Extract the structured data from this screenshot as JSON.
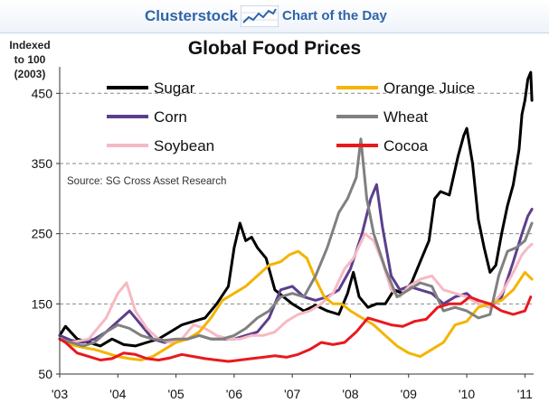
{
  "header": {
    "brand": "Clusterstock",
    "subtitle": "Chart of the Day",
    "logo_icon": "line-chart-icon"
  },
  "chart_data": {
    "type": "line",
    "title": "Global Food Prices",
    "ylabel": "Indexed to 100 (2003)",
    "ylabel_lines": [
      "Indexed",
      "to 100",
      "(2003)"
    ],
    "source": "Source: SG Cross Asset Research",
    "xlim": [
      2003.0,
      2011.15
    ],
    "ylim": [
      50,
      480
    ],
    "x_ticks": [
      {
        "x": 2003,
        "label": "'03"
      },
      {
        "x": 2004,
        "label": "'04"
      },
      {
        "x": 2005,
        "label": "'05"
      },
      {
        "x": 2006,
        "label": "'06"
      },
      {
        "x": 2007,
        "label": "'07"
      },
      {
        "x": 2008,
        "label": "'08"
      },
      {
        "x": 2009,
        "label": "'09"
      },
      {
        "x": 2010,
        "label": "'10"
      },
      {
        "x": 2011,
        "label": "'11"
      }
    ],
    "y_ticks": [
      50,
      150,
      250,
      350,
      450
    ],
    "dashed_gridlines": [
      150,
      250,
      350,
      450
    ],
    "legend_placement": "top, two columns",
    "series": [
      {
        "name": "Sugar",
        "color": "#000000",
        "points": [
          [
            2003.0,
            105
          ],
          [
            2003.1,
            118
          ],
          [
            2003.3,
            100
          ],
          [
            2003.5,
            95
          ],
          [
            2003.7,
            90
          ],
          [
            2003.9,
            100
          ],
          [
            2004.1,
            92
          ],
          [
            2004.3,
            90
          ],
          [
            2004.5,
            95
          ],
          [
            2004.7,
            100
          ],
          [
            2004.9,
            110
          ],
          [
            2005.1,
            120
          ],
          [
            2005.3,
            125
          ],
          [
            2005.5,
            130
          ],
          [
            2005.7,
            150
          ],
          [
            2005.9,
            175
          ],
          [
            2006.0,
            230
          ],
          [
            2006.1,
            265
          ],
          [
            2006.2,
            240
          ],
          [
            2006.3,
            245
          ],
          [
            2006.4,
            230
          ],
          [
            2006.55,
            215
          ],
          [
            2006.7,
            170
          ],
          [
            2006.85,
            160
          ],
          [
            2007.0,
            150
          ],
          [
            2007.2,
            140
          ],
          [
            2007.4,
            148
          ],
          [
            2007.6,
            140
          ],
          [
            2007.8,
            135
          ],
          [
            2007.95,
            165
          ],
          [
            2008.05,
            195
          ],
          [
            2008.15,
            160
          ],
          [
            2008.3,
            145
          ],
          [
            2008.45,
            150
          ],
          [
            2008.6,
            150
          ],
          [
            2008.75,
            170
          ],
          [
            2008.9,
            165
          ],
          [
            2009.05,
            180
          ],
          [
            2009.2,
            210
          ],
          [
            2009.35,
            240
          ],
          [
            2009.45,
            300
          ],
          [
            2009.55,
            310
          ],
          [
            2009.7,
            305
          ],
          [
            2009.85,
            360
          ],
          [
            2009.95,
            390
          ],
          [
            2010.0,
            400
          ],
          [
            2010.1,
            350
          ],
          [
            2010.2,
            270
          ],
          [
            2010.3,
            230
          ],
          [
            2010.4,
            195
          ],
          [
            2010.5,
            205
          ],
          [
            2010.6,
            250
          ],
          [
            2010.7,
            290
          ],
          [
            2010.8,
            320
          ],
          [
            2010.9,
            370
          ],
          [
            2010.95,
            420
          ],
          [
            2011.0,
            440
          ],
          [
            2011.05,
            470
          ],
          [
            2011.1,
            480
          ],
          [
            2011.12,
            440
          ]
        ]
      },
      {
        "name": "Corn",
        "color": "#5b3f8c",
        "points": [
          [
            2003.0,
            105
          ],
          [
            2003.2,
            98
          ],
          [
            2003.4,
            95
          ],
          [
            2003.6,
            100
          ],
          [
            2003.8,
            110
          ],
          [
            2004.0,
            125
          ],
          [
            2004.2,
            140
          ],
          [
            2004.4,
            120
          ],
          [
            2004.6,
            100
          ],
          [
            2004.8,
            95
          ],
          [
            2005.0,
            98
          ],
          [
            2005.2,
            100
          ],
          [
            2005.4,
            105
          ],
          [
            2005.6,
            100
          ],
          [
            2005.8,
            100
          ],
          [
            2006.0,
            100
          ],
          [
            2006.2,
            105
          ],
          [
            2006.4,
            110
          ],
          [
            2006.6,
            130
          ],
          [
            2006.8,
            170
          ],
          [
            2007.0,
            175
          ],
          [
            2007.2,
            160
          ],
          [
            2007.4,
            155
          ],
          [
            2007.6,
            160
          ],
          [
            2007.8,
            170
          ],
          [
            2008.0,
            200
          ],
          [
            2008.2,
            250
          ],
          [
            2008.35,
            300
          ],
          [
            2008.45,
            320
          ],
          [
            2008.55,
            260
          ],
          [
            2008.7,
            190
          ],
          [
            2008.85,
            170
          ],
          [
            2009.0,
            175
          ],
          [
            2009.2,
            170
          ],
          [
            2009.4,
            165
          ],
          [
            2009.6,
            150
          ],
          [
            2009.8,
            160
          ],
          [
            2010.0,
            165
          ],
          [
            2010.2,
            150
          ],
          [
            2010.4,
            145
          ],
          [
            2010.6,
            160
          ],
          [
            2010.8,
            210
          ],
          [
            2010.95,
            250
          ],
          [
            2011.05,
            275
          ],
          [
            2011.12,
            285
          ]
        ]
      },
      {
        "name": "Soybean",
        "color": "#f7b9c3",
        "points": [
          [
            2003.0,
            100
          ],
          [
            2003.2,
            95
          ],
          [
            2003.5,
            100
          ],
          [
            2003.8,
            130
          ],
          [
            2004.0,
            165
          ],
          [
            2004.15,
            180
          ],
          [
            2004.3,
            140
          ],
          [
            2004.5,
            115
          ],
          [
            2004.7,
            100
          ],
          [
            2004.9,
            95
          ],
          [
            2005.1,
            100
          ],
          [
            2005.3,
            120
          ],
          [
            2005.5,
            115
          ],
          [
            2005.7,
            105
          ],
          [
            2005.9,
            100
          ],
          [
            2006.1,
            100
          ],
          [
            2006.3,
            105
          ],
          [
            2006.5,
            105
          ],
          [
            2006.7,
            110
          ],
          [
            2006.9,
            125
          ],
          [
            2007.1,
            135
          ],
          [
            2007.3,
            140
          ],
          [
            2007.5,
            150
          ],
          [
            2007.7,
            165
          ],
          [
            2007.9,
            200
          ],
          [
            2008.05,
            215
          ],
          [
            2008.25,
            250
          ],
          [
            2008.4,
            240
          ],
          [
            2008.55,
            210
          ],
          [
            2008.7,
            170
          ],
          [
            2008.85,
            160
          ],
          [
            2009.0,
            175
          ],
          [
            2009.2,
            185
          ],
          [
            2009.4,
            190
          ],
          [
            2009.6,
            170
          ],
          [
            2009.8,
            165
          ],
          [
            2010.0,
            160
          ],
          [
            2010.2,
            150
          ],
          [
            2010.4,
            145
          ],
          [
            2010.6,
            165
          ],
          [
            2010.8,
            195
          ],
          [
            2010.95,
            220
          ],
          [
            2011.05,
            230
          ],
          [
            2011.12,
            235
          ]
        ]
      },
      {
        "name": "Orange Juice",
        "color": "#f4b400",
        "points": [
          [
            2003.0,
            100
          ],
          [
            2003.2,
            92
          ],
          [
            2003.4,
            88
          ],
          [
            2003.6,
            85
          ],
          [
            2003.8,
            80
          ],
          [
            2004.0,
            75
          ],
          [
            2004.2,
            72
          ],
          [
            2004.4,
            70
          ],
          [
            2004.6,
            75
          ],
          [
            2004.8,
            85
          ],
          [
            2005.0,
            95
          ],
          [
            2005.2,
            100
          ],
          [
            2005.4,
            110
          ],
          [
            2005.6,
            130
          ],
          [
            2005.8,
            155
          ],
          [
            2006.0,
            165
          ],
          [
            2006.2,
            175
          ],
          [
            2006.4,
            190
          ],
          [
            2006.6,
            205
          ],
          [
            2006.8,
            210
          ],
          [
            2006.95,
            220
          ],
          [
            2007.1,
            225
          ],
          [
            2007.25,
            215
          ],
          [
            2007.4,
            185
          ],
          [
            2007.55,
            160
          ],
          [
            2007.7,
            150
          ],
          [
            2007.85,
            150
          ],
          [
            2008.0,
            140
          ],
          [
            2008.2,
            130
          ],
          [
            2008.4,
            120
          ],
          [
            2008.6,
            105
          ],
          [
            2008.8,
            90
          ],
          [
            2009.0,
            80
          ],
          [
            2009.2,
            75
          ],
          [
            2009.4,
            85
          ],
          [
            2009.6,
            95
          ],
          [
            2009.8,
            120
          ],
          [
            2010.0,
            125
          ],
          [
            2010.2,
            145
          ],
          [
            2010.4,
            150
          ],
          [
            2010.6,
            155
          ],
          [
            2010.8,
            170
          ],
          [
            2011.0,
            195
          ],
          [
            2011.12,
            185
          ]
        ]
      },
      {
        "name": "Wheat",
        "color": "#808080",
        "points": [
          [
            2003.0,
            100
          ],
          [
            2003.2,
            95
          ],
          [
            2003.4,
            90
          ],
          [
            2003.6,
            95
          ],
          [
            2003.8,
            110
          ],
          [
            2004.0,
            120
          ],
          [
            2004.2,
            115
          ],
          [
            2004.4,
            105
          ],
          [
            2004.6,
            100
          ],
          [
            2004.8,
            98
          ],
          [
            2005.0,
            100
          ],
          [
            2005.2,
            100
          ],
          [
            2005.4,
            105
          ],
          [
            2005.6,
            100
          ],
          [
            2005.8,
            100
          ],
          [
            2006.0,
            105
          ],
          [
            2006.2,
            115
          ],
          [
            2006.4,
            130
          ],
          [
            2006.6,
            140
          ],
          [
            2006.8,
            160
          ],
          [
            2007.0,
            165
          ],
          [
            2007.2,
            160
          ],
          [
            2007.4,
            190
          ],
          [
            2007.6,
            230
          ],
          [
            2007.8,
            280
          ],
          [
            2007.95,
            300
          ],
          [
            2008.1,
            330
          ],
          [
            2008.18,
            385
          ],
          [
            2008.28,
            300
          ],
          [
            2008.4,
            250
          ],
          [
            2008.6,
            200
          ],
          [
            2008.8,
            160
          ],
          [
            2009.0,
            170
          ],
          [
            2009.2,
            180
          ],
          [
            2009.4,
            175
          ],
          [
            2009.6,
            140
          ],
          [
            2009.8,
            145
          ],
          [
            2010.0,
            140
          ],
          [
            2010.2,
            130
          ],
          [
            2010.4,
            135
          ],
          [
            2010.55,
            190
          ],
          [
            2010.7,
            225
          ],
          [
            2010.85,
            230
          ],
          [
            2011.0,
            240
          ],
          [
            2011.12,
            265
          ]
        ]
      },
      {
        "name": "Cocoa",
        "color": "#e8191e",
        "points": [
          [
            2003.0,
            100
          ],
          [
            2003.1,
            95
          ],
          [
            2003.3,
            80
          ],
          [
            2003.5,
            75
          ],
          [
            2003.7,
            70
          ],
          [
            2003.9,
            72
          ],
          [
            2004.1,
            80
          ],
          [
            2004.3,
            78
          ],
          [
            2004.5,
            72
          ],
          [
            2004.7,
            70
          ],
          [
            2004.9,
            73
          ],
          [
            2005.1,
            78
          ],
          [
            2005.3,
            75
          ],
          [
            2005.5,
            72
          ],
          [
            2005.7,
            70
          ],
          [
            2005.9,
            68
          ],
          [
            2006.1,
            70
          ],
          [
            2006.3,
            72
          ],
          [
            2006.5,
            74
          ],
          [
            2006.7,
            76
          ],
          [
            2006.9,
            74
          ],
          [
            2007.1,
            78
          ],
          [
            2007.3,
            85
          ],
          [
            2007.5,
            95
          ],
          [
            2007.7,
            92
          ],
          [
            2007.9,
            95
          ],
          [
            2008.1,
            110
          ],
          [
            2008.3,
            130
          ],
          [
            2008.5,
            125
          ],
          [
            2008.7,
            120
          ],
          [
            2008.9,
            118
          ],
          [
            2009.1,
            125
          ],
          [
            2009.3,
            128
          ],
          [
            2009.5,
            145
          ],
          [
            2009.7,
            150
          ],
          [
            2009.9,
            150
          ],
          [
            2010.05,
            160
          ],
          [
            2010.2,
            155
          ],
          [
            2010.4,
            150
          ],
          [
            2010.6,
            140
          ],
          [
            2010.8,
            135
          ],
          [
            2011.0,
            140
          ],
          [
            2011.1,
            160
          ]
        ]
      }
    ]
  }
}
